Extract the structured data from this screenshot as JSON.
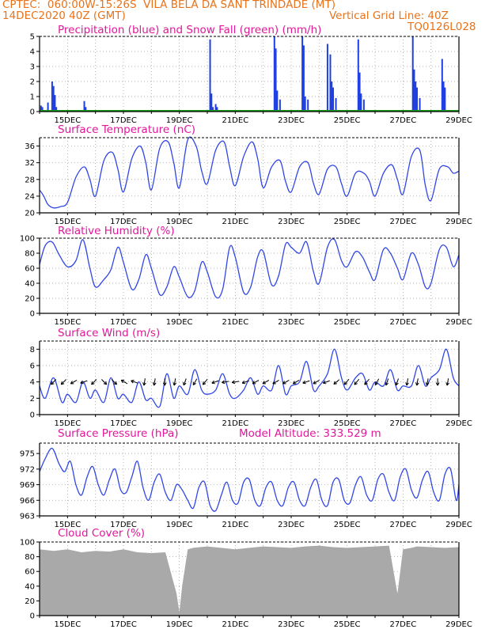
{
  "header": {
    "line1": "CPTEC:  060:00W-15:26S  VILA BELA DA SANT TRINDADE (MT)",
    "line2_left": "14DEC2020 40Z (GMT)",
    "line2_right": "Vertical Grid Line: 40Z",
    "code": "TQ0126L028"
  },
  "x_tick_labels": [
    "15DEC",
    "17DEC",
    "19DEC",
    "21DEC",
    "23DEC",
    "25DEC",
    "27DEC",
    "29DEC"
  ],
  "chart_data": [
    {
      "type": "bar",
      "title": "Precipitation (blue) and Snow Fall (green) (mm/h)",
      "ylim": [
        0,
        5
      ],
      "yticks": [
        0,
        1,
        2,
        3,
        4,
        5
      ],
      "series": [
        {
          "name": "Precipitation",
          "color": "#1f3fe0",
          "x": [
            14.05,
            14.1,
            14.3,
            14.45,
            14.5,
            14.55,
            14.6,
            15.6,
            15.65,
            20.1,
            20.15,
            20.2,
            20.3,
            20.35,
            22.4,
            22.45,
            22.5,
            22.6,
            23.4,
            23.45,
            23.5,
            23.6,
            24.3,
            24.4,
            24.45,
            24.5,
            24.6,
            25.4,
            25.45,
            25.5,
            25.6,
            27.35,
            27.4,
            27.45,
            27.5,
            27.6,
            28.4,
            28.45,
            28.5
          ],
          "values": [
            0.4,
            0.3,
            0.6,
            2.0,
            1.7,
            1.1,
            0.3,
            0.7,
            0.3,
            4.8,
            1.2,
            0.3,
            0.5,
            0.3,
            5.0,
            4.2,
            1.4,
            0.8,
            5.0,
            4.4,
            1.0,
            0.8,
            4.5,
            3.8,
            2.0,
            1.6,
            0.9,
            4.8,
            2.6,
            1.2,
            0.8,
            5.0,
            2.8,
            2.0,
            1.6,
            0.9,
            3.5,
            2.0,
            1.6
          ]
        },
        {
          "name": "Snow Fall",
          "color": "#1aa01a",
          "x": [
            14.0,
            29.0
          ],
          "values": [
            0,
            0
          ]
        }
      ]
    },
    {
      "type": "line",
      "title": "Surface Temperature (nC)",
      "ylim": [
        20,
        38
      ],
      "yticks": [
        20,
        24,
        28,
        32,
        36
      ],
      "series": [
        {
          "name": "Temperature",
          "color": "#3046e8",
          "x": [
            14.0,
            14.15,
            14.3,
            14.5,
            14.75,
            15.0,
            15.3,
            15.6,
            15.8,
            16.0,
            16.3,
            16.6,
            16.8,
            17.0,
            17.3,
            17.6,
            17.8,
            18.0,
            18.3,
            18.6,
            18.8,
            19.0,
            19.3,
            19.6,
            19.8,
            20.0,
            20.3,
            20.6,
            20.8,
            21.0,
            21.3,
            21.6,
            21.8,
            22.0,
            22.3,
            22.6,
            22.8,
            23.0,
            23.3,
            23.6,
            23.8,
            24.0,
            24.3,
            24.6,
            24.8,
            25.0,
            25.3,
            25.6,
            25.8,
            26.0,
            26.3,
            26.6,
            26.8,
            27.0,
            27.3,
            27.6,
            27.8,
            28.0,
            28.3,
            28.6,
            28.8,
            29.0
          ],
          "values": [
            25.5,
            24.0,
            22.0,
            21.2,
            21.5,
            22.5,
            28.5,
            31.0,
            28.0,
            24.0,
            32.5,
            34.5,
            30.5,
            25.0,
            33.0,
            36.0,
            32.0,
            25.5,
            35.5,
            37.0,
            32.0,
            26.0,
            37.5,
            36.0,
            30.0,
            27.0,
            35.0,
            37.0,
            31.0,
            26.5,
            33.5,
            37.0,
            33.0,
            26.0,
            31.0,
            32.5,
            27.5,
            25.0,
            31.0,
            32.0,
            27.0,
            24.5,
            30.5,
            31.0,
            27.0,
            24.0,
            29.5,
            29.5,
            27.5,
            24.0,
            29.5,
            31.5,
            28.0,
            24.5,
            33.5,
            35.0,
            26.5,
            23.0,
            30.5,
            31.0,
            29.5,
            30.0
          ]
        }
      ]
    },
    {
      "type": "line",
      "title": "Relative Humidity (%)",
      "ylim": [
        0,
        100
      ],
      "yticks": [
        0,
        20,
        40,
        60,
        80,
        100
      ],
      "series": [
        {
          "name": "Relative Humidity",
          "color": "#3046e8",
          "x": [
            14.0,
            14.2,
            14.45,
            14.7,
            15.0,
            15.3,
            15.55,
            15.8,
            16.0,
            16.3,
            16.55,
            16.8,
            17.0,
            17.3,
            17.55,
            17.8,
            18.0,
            18.3,
            18.55,
            18.8,
            19.0,
            19.3,
            19.55,
            19.8,
            20.0,
            20.3,
            20.55,
            20.8,
            21.0,
            21.3,
            21.55,
            21.8,
            22.0,
            22.3,
            22.55,
            22.8,
            23.0,
            23.3,
            23.55,
            23.8,
            24.0,
            24.3,
            24.55,
            24.8,
            25.0,
            25.3,
            25.55,
            25.8,
            26.0,
            26.3,
            26.55,
            26.8,
            27.0,
            27.3,
            27.55,
            27.8,
            28.0,
            28.3,
            28.55,
            28.8,
            29.0
          ],
          "values": [
            65,
            90,
            95,
            78,
            62,
            70,
            98,
            60,
            35,
            45,
            58,
            88,
            68,
            32,
            45,
            78,
            60,
            25,
            35,
            62,
            48,
            22,
            30,
            68,
            55,
            22,
            32,
            88,
            75,
            28,
            35,
            75,
            82,
            38,
            50,
            92,
            88,
            80,
            95,
            55,
            40,
            88,
            98,
            70,
            62,
            82,
            75,
            55,
            45,
            85,
            80,
            60,
            45,
            80,
            65,
            35,
            40,
            85,
            88,
            62,
            78
          ]
        }
      ]
    },
    {
      "type": "line",
      "title": "Surface Wind (m/s)",
      "ylim": [
        0,
        9
      ],
      "yticks": [
        0,
        2,
        4,
        6,
        8
      ],
      "series": [
        {
          "name": "Wind Speed",
          "color": "#3046e8",
          "x": [
            14.0,
            14.2,
            14.5,
            14.8,
            15.0,
            15.3,
            15.55,
            15.8,
            16.0,
            16.3,
            16.55,
            16.8,
            17.0,
            17.3,
            17.55,
            17.8,
            18.0,
            18.3,
            18.55,
            18.8,
            19.0,
            19.3,
            19.55,
            19.8,
            20.0,
            20.3,
            20.55,
            20.8,
            21.0,
            21.3,
            21.55,
            21.8,
            22.0,
            22.3,
            22.55,
            22.8,
            23.0,
            23.3,
            23.55,
            23.8,
            24.0,
            24.3,
            24.55,
            24.8,
            25.0,
            25.3,
            25.55,
            25.8,
            26.0,
            26.3,
            26.55,
            26.8,
            27.0,
            27.3,
            27.55,
            27.8,
            28.0,
            28.3,
            28.55,
            28.8,
            29.0
          ],
          "values": [
            3.5,
            2.0,
            4.5,
            1.5,
            2.5,
            1.5,
            4.0,
            2.0,
            3.0,
            1.5,
            4.5,
            2.0,
            2.5,
            1.5,
            4.0,
            1.8,
            2.0,
            1.0,
            5.0,
            2.0,
            3.5,
            2.5,
            5.5,
            3.0,
            2.5,
            3.0,
            5.0,
            2.5,
            2.0,
            3.0,
            4.5,
            2.5,
            3.5,
            3.0,
            6.0,
            2.5,
            3.5,
            4.0,
            6.5,
            3.0,
            3.5,
            5.0,
            8.0,
            4.5,
            3.0,
            4.5,
            5.0,
            3.0,
            4.0,
            3.5,
            5.5,
            3.0,
            3.5,
            3.5,
            6.0,
            3.5,
            4.5,
            5.5,
            8.0,
            4.5,
            3.5
          ]
        }
      ],
      "wind_vectors_deg": [
        135,
        135,
        150,
        160,
        135,
        45,
        45,
        210,
        200,
        100,
        100,
        90,
        100,
        110,
        120,
        130,
        160,
        170,
        170,
        160,
        150,
        150,
        150,
        150,
        150,
        160,
        150,
        160,
        140,
        130,
        130,
        130,
        120,
        110,
        110,
        100,
        100,
        100,
        90,
        100
      ]
    },
    {
      "type": "line",
      "title": "Surface Pressure (hPa)",
      "subtitle": "Model Altitude: 333.529  m",
      "ylim": [
        963,
        977
      ],
      "yticks": [
        963,
        966,
        969,
        972,
        975
      ],
      "series": [
        {
          "name": "Surface Pressure",
          "color": "#3046e8",
          "x": [
            14.0,
            14.2,
            14.45,
            14.7,
            14.9,
            15.1,
            15.3,
            15.5,
            15.7,
            15.9,
            16.1,
            16.3,
            16.5,
            16.7,
            16.9,
            17.1,
            17.3,
            17.5,
            17.7,
            17.9,
            18.1,
            18.3,
            18.5,
            18.7,
            18.9,
            19.1,
            19.3,
            19.5,
            19.7,
            19.9,
            20.1,
            20.3,
            20.5,
            20.7,
            20.9,
            21.1,
            21.3,
            21.5,
            21.7,
            21.9,
            22.1,
            22.3,
            22.5,
            22.7,
            22.9,
            23.1,
            23.3,
            23.5,
            23.7,
            23.9,
            24.1,
            24.3,
            24.5,
            24.7,
            24.9,
            25.1,
            25.3,
            25.5,
            25.7,
            25.9,
            26.1,
            26.3,
            26.5,
            26.7,
            26.9,
            27.1,
            27.3,
            27.5,
            27.7,
            27.9,
            28.1,
            28.3,
            28.5,
            28.7,
            28.9,
            29.0
          ],
          "values": [
            971.5,
            974.0,
            976.0,
            973.0,
            971.5,
            973.5,
            969.0,
            967.0,
            970.5,
            972.5,
            969.0,
            967.0,
            970.0,
            972.0,
            968.0,
            967.5,
            970.5,
            973.5,
            968.5,
            966.0,
            969.5,
            971.0,
            967.5,
            966.0,
            969.0,
            968.0,
            966.0,
            964.5,
            968.5,
            969.5,
            965.0,
            964.0,
            967.0,
            969.5,
            966.0,
            965.5,
            969.5,
            970.0,
            966.0,
            965.0,
            968.5,
            969.5,
            966.0,
            965.0,
            968.5,
            969.5,
            966.0,
            965.0,
            968.5,
            970.0,
            966.0,
            965.0,
            969.5,
            970.0,
            966.0,
            965.5,
            969.0,
            970.5,
            967.0,
            966.0,
            970.0,
            971.0,
            967.5,
            966.0,
            970.5,
            972.0,
            968.0,
            966.5,
            970.0,
            971.5,
            967.5,
            966.0,
            971.0,
            972.0,
            966.0,
            969.0
          ]
        }
      ]
    },
    {
      "type": "area",
      "title": "Cloud Cover (%)",
      "ylim": [
        0,
        100
      ],
      "yticks": [
        0,
        20,
        40,
        60,
        80,
        100
      ],
      "series": [
        {
          "name": "Cloud Cover",
          "color": "#a9a9a9",
          "x": [
            14.0,
            14.5,
            15.0,
            15.5,
            16.0,
            16.5,
            17.0,
            17.5,
            18.0,
            18.5,
            18.9,
            19.0,
            19.1,
            19.3,
            19.5,
            20.0,
            20.5,
            21.0,
            21.5,
            22.0,
            22.5,
            23.0,
            23.5,
            24.0,
            24.5,
            25.0,
            25.5,
            26.0,
            26.5,
            26.8,
            27.0,
            27.3,
            27.5,
            28.0,
            28.5,
            29.0
          ],
          "values": [
            90,
            88,
            90,
            86,
            88,
            87,
            90,
            86,
            85,
            86,
            30,
            5,
            40,
            90,
            92,
            94,
            92,
            90,
            92,
            94,
            93,
            92,
            94,
            95,
            93,
            92,
            93,
            94,
            95,
            30,
            90,
            92,
            94,
            93,
            92,
            93
          ]
        }
      ]
    }
  ]
}
